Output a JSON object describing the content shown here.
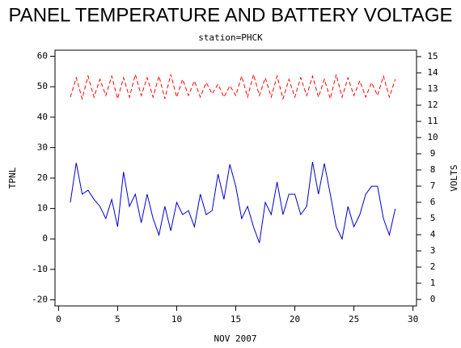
{
  "chart_data": {
    "type": "line",
    "title": "PANEL TEMPERATURE AND BATTERY VOLTAGE",
    "subtitle": "station=PHCK",
    "x_label": "NOV 2007",
    "y_label": "TPNL",
    "y2_label": "VOLTS",
    "x": [
      1,
      1.5,
      2,
      2.5,
      3,
      3.5,
      4,
      4.5,
      5,
      5.5,
      6,
      6.5,
      7,
      7.5,
      8,
      8.5,
      9,
      9.5,
      10,
      10.5,
      11,
      11.5,
      12,
      12.5,
      13,
      13.5,
      14,
      14.5,
      15,
      15.5,
      16,
      16.5,
      17,
      17.5,
      18,
      18.5,
      19,
      19.5,
      20,
      20.5,
      21,
      21.5,
      22,
      22.5,
      23,
      23.5,
      24,
      24.5,
      25,
      25.5,
      26,
      26.5,
      27,
      27.5,
      28,
      28.5
    ],
    "series": [
      {
        "color": "#0000cc",
        "dash": false,
        "values": [
          12,
          25,
          14.7,
          16,
          13,
          10.7,
          6.7,
          13,
          4,
          22,
          10.7,
          14.7,
          5.3,
          14.7,
          6.7,
          1.3,
          10.7,
          2.7,
          12,
          8,
          9.3,
          4,
          14.7,
          8,
          9.3,
          21.3,
          13,
          24.5,
          17.3,
          6.7,
          10.7,
          4,
          -1.3,
          12,
          8,
          18.7,
          8,
          14.7,
          14.7,
          8,
          10.7,
          25.3,
          14.7,
          24.8,
          14.7,
          4,
          0,
          10.7,
          4,
          8,
          14.7,
          17.3,
          17.3,
          6.7,
          1.3,
          9.9
        ]
      },
      {
        "color": "#ff0000",
        "dash": true,
        "axis": "y2",
        "values": [
          12.5,
          13.7,
          12.4,
          13.8,
          12.5,
          13.6,
          12.6,
          13.8,
          12.4,
          13.7,
          12.5,
          13.9,
          12.6,
          13.7,
          12.5,
          13.8,
          12.4,
          13.9,
          12.5,
          13.6,
          12.6,
          13.5,
          12.5,
          13.4,
          12.7,
          13.3,
          12.5,
          13.2,
          12.6,
          13.8,
          12.5,
          13.9,
          12.6,
          13.7,
          12.5,
          13.8,
          12.4,
          13.6,
          12.5,
          13.7,
          12.6,
          13.8,
          12.5,
          13.6,
          12.4,
          13.9,
          12.5,
          13.7,
          12.6,
          13.5,
          12.5,
          13.4,
          12.6,
          13.8,
          12.5,
          13.6
        ]
      }
    ],
    "xlim": [
      -0.3,
      30.3
    ],
    "xticks": [
      0,
      5,
      10,
      15,
      20,
      25,
      30
    ],
    "ylim": [
      -22,
      62
    ],
    "yticks": [
      -20,
      -10,
      0,
      10,
      20,
      30,
      40,
      50,
      60
    ],
    "y2lim": [
      -0.4,
      15.4
    ],
    "y2ticks": [
      0,
      1,
      2,
      3,
      4,
      5,
      6,
      7,
      8,
      9,
      10,
      11,
      12,
      13,
      14,
      15
    ]
  }
}
